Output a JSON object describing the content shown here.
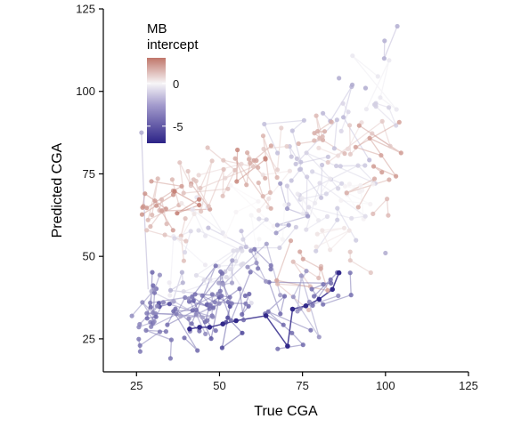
{
  "chart_data": {
    "type": "scatter",
    "xlabel": "True CGA",
    "ylabel": "Predicted CGA",
    "xlim": [
      15,
      125
    ],
    "ylim": [
      15,
      125
    ],
    "xticks": [
      25,
      50,
      75,
      100,
      125
    ],
    "yticks": [
      25,
      50,
      75,
      100,
      125
    ],
    "grid": false,
    "legend": {
      "title_line1": "MB",
      "title_line2": "intercept",
      "placement": "top-left",
      "labels": [
        "0",
        "-5"
      ],
      "label_values": [
        0,
        -5
      ],
      "range": [
        -7,
        3
      ],
      "colors": {
        "low": "#2c2387",
        "mid": "#f7f5f7",
        "high": "#c0766a"
      }
    },
    "colorscale_points": {
      "low_intercept": [
        [
          40,
          28.5
        ],
        [
          43,
          28.5
        ],
        [
          47,
          28.8
        ],
        [
          50,
          29.5
        ],
        [
          53,
          30.5
        ],
        [
          57,
          31
        ],
        [
          64,
          32
        ],
        [
          70.5,
          22.8
        ],
        [
          75,
          34
        ],
        [
          79,
          35
        ],
        [
          84,
          39
        ],
        [
          86,
          43
        ],
        [
          36,
          33
        ],
        [
          38,
          31
        ],
        [
          39,
          30
        ],
        [
          41,
          32
        ],
        [
          34,
          34
        ],
        [
          33,
          35
        ],
        [
          30,
          35
        ],
        [
          28,
          33
        ],
        [
          27,
          35
        ],
        [
          26,
          31
        ],
        [
          29,
          25
        ],
        [
          30,
          25
        ],
        [
          44,
          36
        ],
        [
          46,
          37
        ],
        [
          48,
          38
        ],
        [
          52,
          39
        ],
        [
          54,
          43
        ],
        [
          60,
          42
        ],
        [
          62,
          45
        ]
      ],
      "mid_intercept": [
        [
          35,
          45
        ],
        [
          40,
          52
        ],
        [
          45,
          55
        ],
        [
          50,
          58
        ],
        [
          55,
          61
        ],
        [
          60,
          64
        ],
        [
          65,
          68
        ],
        [
          70,
          70
        ],
        [
          75,
          72
        ],
        [
          80,
          71
        ],
        [
          85,
          74
        ],
        [
          90,
          76
        ],
        [
          92,
          69
        ],
        [
          88,
          65
        ],
        [
          82,
          60
        ],
        [
          78,
          55
        ],
        [
          72,
          62
        ],
        [
          68,
          58
        ],
        [
          62,
          55
        ],
        [
          58,
          51
        ],
        [
          52,
          48
        ],
        [
          48,
          45
        ],
        [
          44,
          42
        ],
        [
          38,
          40
        ],
        [
          66,
          78
        ],
        [
          72,
          80
        ],
        [
          78,
          84
        ],
        [
          84,
          88
        ],
        [
          88,
          92
        ],
        [
          93,
          95
        ],
        [
          96,
          99
        ],
        [
          99,
          115
        ]
      ],
      "high_intercept": [
        [
          27,
          63
        ],
        [
          28,
          63
        ],
        [
          30,
          68
        ],
        [
          31,
          65
        ],
        [
          32,
          60
        ],
        [
          33,
          58
        ],
        [
          35,
          55
        ],
        [
          36,
          62
        ],
        [
          38,
          64
        ],
        [
          40,
          66
        ],
        [
          42,
          70
        ],
        [
          44,
          68
        ],
        [
          48,
          72
        ],
        [
          50,
          73
        ],
        [
          55,
          74
        ],
        [
          58,
          78
        ],
        [
          60,
          75
        ],
        [
          63,
          80
        ],
        [
          65,
          73
        ],
        [
          70,
          82
        ],
        [
          76,
          84
        ],
        [
          80,
          86
        ],
        [
          86,
          82
        ],
        [
          90,
          80
        ],
        [
          94,
          78
        ],
        [
          96,
          77
        ],
        [
          94,
          68
        ],
        [
          98,
          60
        ],
        [
          72,
          43
        ],
        [
          76,
          48
        ],
        [
          82,
          52
        ],
        [
          92,
          50
        ]
      ],
      "outliers": [
        [
          26.5,
          87.5
        ],
        [
          86,
          104
        ],
        [
          90,
          102
        ],
        [
          94,
          101
        ],
        [
          100,
          51
        ]
      ]
    },
    "highlighted_path": {
      "points": [
        [
          41,
          28
        ],
        [
          44,
          28.5
        ],
        [
          47,
          28.5
        ],
        [
          51,
          29.5
        ],
        [
          55,
          30.5
        ],
        [
          64,
          32
        ],
        [
          70.5,
          22.8
        ],
        [
          72,
          34
        ],
        [
          76,
          35
        ],
        [
          80,
          37
        ],
        [
          84,
          40
        ],
        [
          86,
          45
        ]
      ]
    }
  }
}
